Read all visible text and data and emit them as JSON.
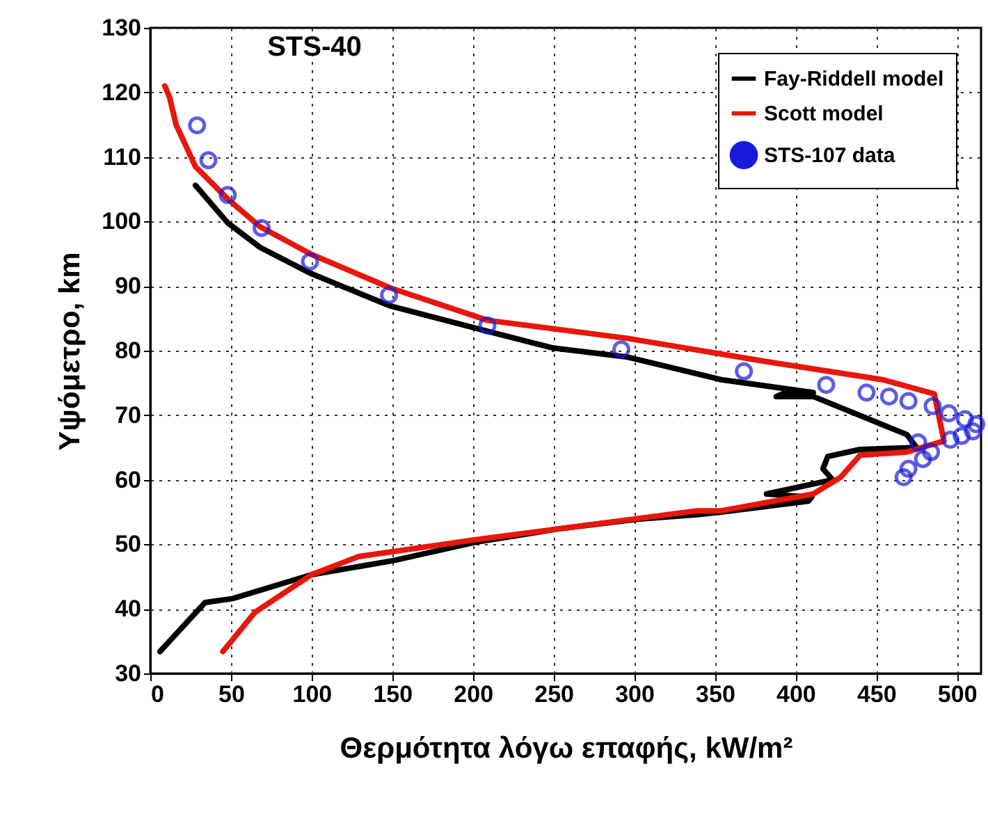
{
  "chart_data": {
    "type": "line",
    "xlabel": "Θερμότητα λόγω επαφής,  kW/m²",
    "ylabel": "Υψόμετρο,  km",
    "annotations": [
      "STS-40"
    ],
    "xlim": [
      0,
      515
    ],
    "xticks": [
      0,
      50,
      100,
      150,
      200,
      250,
      300,
      350,
      400,
      450,
      500
    ],
    "ylim": [
      30,
      130
    ],
    "yticks": [
      30,
      40,
      50,
      60,
      70,
      80,
      90,
      100,
      110,
      120,
      130
    ],
    "grid": true,
    "legend": "top right",
    "line_style": "solid",
    "series": [
      {
        "name": "Fay-Riddell model",
        "color": "#000000",
        "x": [
          6,
          34,
          51,
          100,
          151,
          201,
          253,
          302,
          339,
          354,
          408,
          410,
          382,
          423,
          417,
          420,
          440,
          475,
          469,
          411,
          388,
          394,
          411,
          354,
          296,
          250,
          209,
          149,
          100,
          68,
          48,
          28
        ],
        "values": [
          33.4,
          41,
          41.6,
          45.3,
          47.5,
          50.3,
          52.4,
          53.9,
          54.6,
          55,
          56.7,
          57.3,
          57.8,
          60,
          61.7,
          63.6,
          64.7,
          65,
          67,
          72.9,
          72.9,
          73.5,
          73.5,
          75.5,
          79,
          80.4,
          83,
          86.9,
          91.9,
          96,
          99.8,
          105.6
        ]
      },
      {
        "name": "Scott model",
        "color": "#e8160c",
        "x": [
          45,
          65,
          100,
          129,
          201,
          253,
          339,
          354,
          411,
          428,
          440,
          469,
          492,
          486,
          454,
          382,
          296,
          209,
          149,
          100,
          68,
          48,
          28,
          16,
          12,
          9
        ],
        "values": [
          33.4,
          39.5,
          45.3,
          48.1,
          50.7,
          52.4,
          55.2,
          55.2,
          57.8,
          60.4,
          63.8,
          64.3,
          66,
          73.3,
          75.5,
          78.3,
          81.9,
          84.7,
          89.7,
          94.9,
          99.2,
          103.5,
          108.5,
          115,
          119.2,
          121
        ]
      },
      {
        "name": "STS-107 data",
        "color": "#1a1adc",
        "type": "scatter",
        "x": [
          29,
          36,
          48,
          69,
          99,
          148,
          209,
          292,
          368,
          419,
          444,
          458,
          470,
          485,
          495,
          505,
          512,
          510,
          503,
          496,
          476,
          484,
          479,
          470,
          467
        ],
        "values": [
          114.9,
          109.5,
          104.1,
          99,
          93.8,
          88.6,
          83.9,
          80.2,
          76.8,
          74.7,
          73.5,
          72.9,
          72.2,
          71.4,
          70.3,
          69.4,
          68.6,
          67.5,
          66.8,
          66.2,
          65.8,
          64.3,
          63.2,
          61.7,
          60.4
        ]
      }
    ]
  }
}
